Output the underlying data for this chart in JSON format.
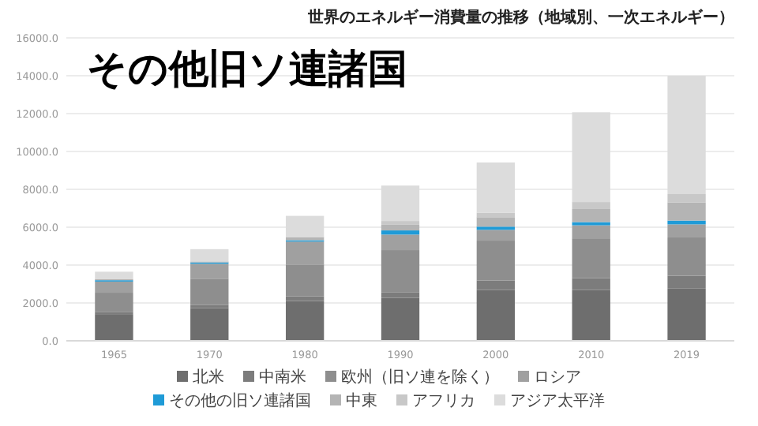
{
  "chart_data": {
    "type": "bar",
    "stacked": true,
    "title": "世界のエネルギー消費量の推移（地域別、一次エネルギー）",
    "annotations": [
      "その他旧ソ連諸国"
    ],
    "categories": [
      "1965",
      "1970",
      "1980",
      "1990",
      "2000",
      "2010",
      "2019"
    ],
    "series": [
      {
        "name": "北米",
        "color": "#6e6e6e",
        "values": [
          1410,
          1730,
          2100,
          2270,
          2690,
          2690,
          2760
        ]
      },
      {
        "name": "中南米",
        "color": "#7c7c7c",
        "values": [
          120,
          170,
          250,
          300,
          500,
          620,
          670
        ]
      },
      {
        "name": "欧州（旧ソ連を除く）",
        "color": "#8e8e8e",
        "values": [
          1010,
          1380,
          1680,
          2220,
          2100,
          2100,
          2030
        ]
      },
      {
        "name": "ロシア",
        "color": "#a0a0a0",
        "values": [
          590,
          790,
          1210,
          820,
          570,
          690,
          690
        ]
      },
      {
        "name": "その他の旧ソ連諸国",
        "color": "#1f9bd7",
        "values": [
          70,
          70,
          70,
          220,
          170,
          170,
          200
        ]
      },
      {
        "name": "中東",
        "color": "#b4b4b4",
        "values": [
          70,
          50,
          170,
          300,
          500,
          690,
          960
        ]
      },
      {
        "name": "アフリカ",
        "color": "#c8c8c8",
        "values": [
          null,
          null,
          null,
          200,
          240,
          370,
          440
        ]
      },
      {
        "name": "アジア太平洋",
        "color": "#dcdcdc",
        "values": [
          380,
          650,
          1120,
          1870,
          2650,
          4740,
          6250
        ]
      }
    ],
    "ylim": [
      0,
      16000
    ],
    "yticks": [
      {
        "value": 0,
        "label": "0.0"
      },
      {
        "value": 2000,
        "label": "2000.0"
      },
      {
        "value": 4000,
        "label": "4000.0"
      },
      {
        "value": 6000,
        "label": "6000.0"
      },
      {
        "value": 8000,
        "label": "8000.0"
      },
      {
        "value": 10000,
        "label": "10000.0"
      },
      {
        "value": 12000,
        "label": "12000.0"
      },
      {
        "value": 14000,
        "label": "14000.0"
      },
      {
        "value": 16000,
        "label": "16000.0"
      }
    ],
    "grid": "y",
    "legend": "bottom"
  }
}
